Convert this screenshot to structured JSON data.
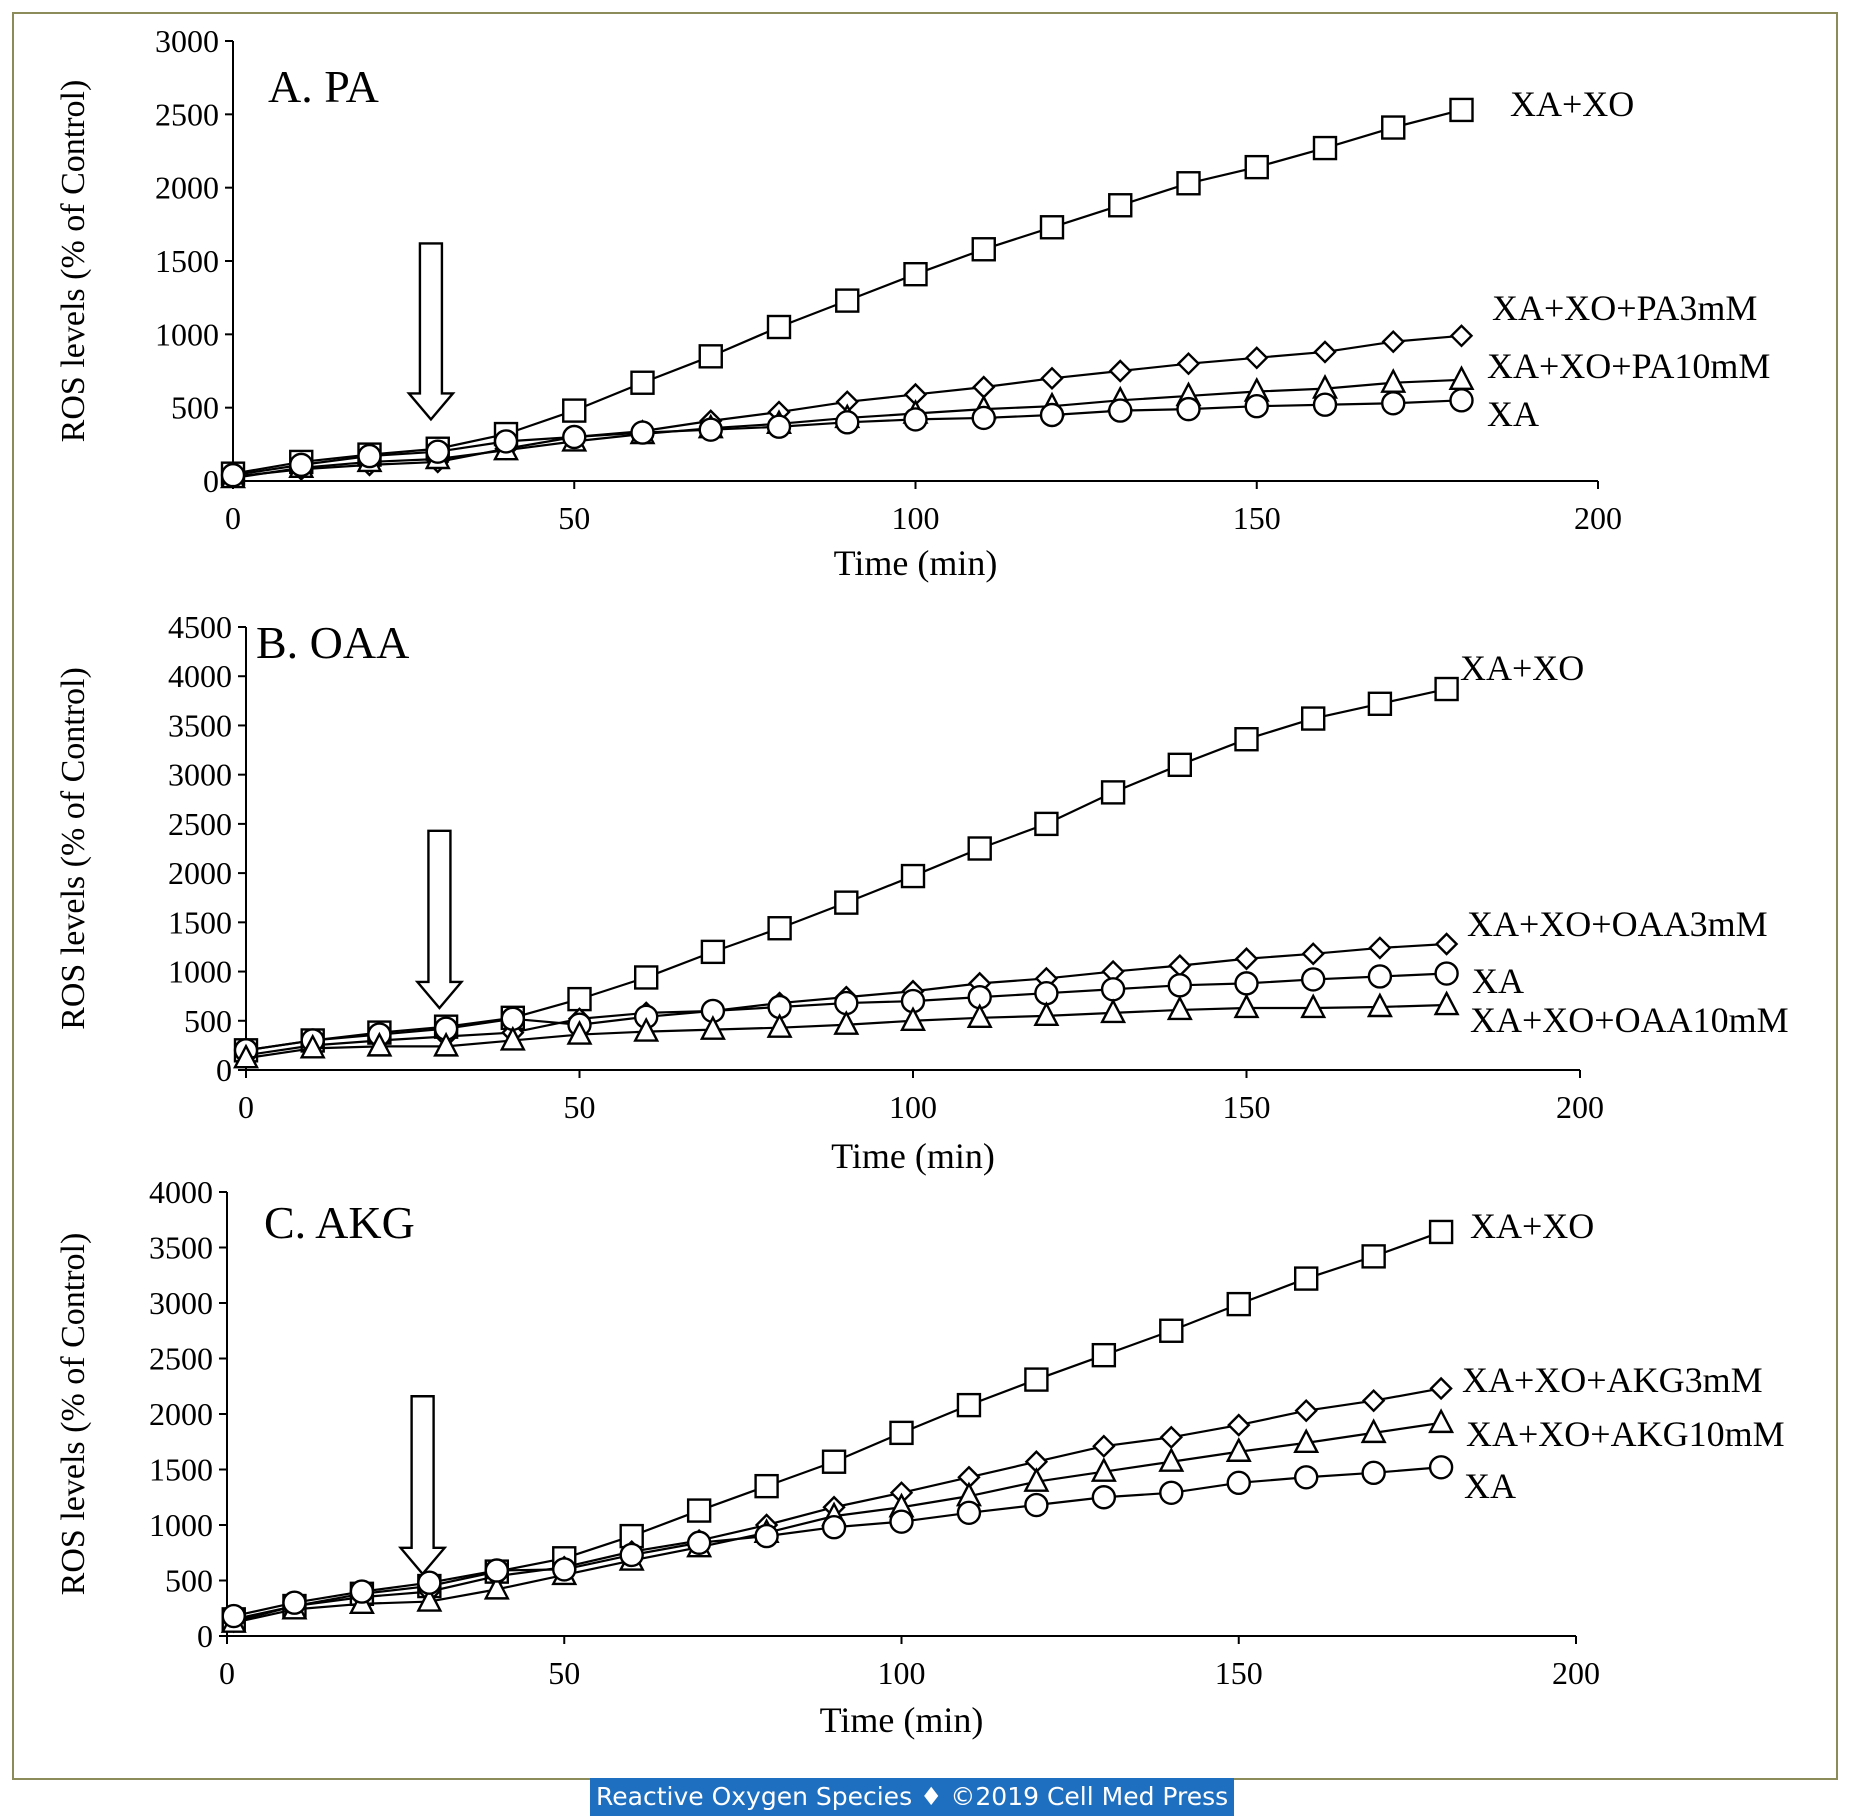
{
  "chart_data": [
    {
      "type": "line",
      "title": "A. PA",
      "xlabel": "Time (min)",
      "ylabel": "ROS levels  (% of Control)",
      "xlim": [
        0,
        200
      ],
      "ylim": [
        0,
        3000
      ],
      "x_ticks": [
        0,
        50,
        100,
        150,
        200
      ],
      "y_ticks": [
        0,
        500,
        1000,
        1500,
        2000,
        2500,
        3000
      ],
      "arrow_x": 29,
      "x": [
        0,
        10,
        20,
        30,
        40,
        50,
        60,
        70,
        80,
        90,
        100,
        110,
        120,
        130,
        140,
        150,
        160,
        170,
        180
      ],
      "series": [
        {
          "name": "XA+XO",
          "marker": "square",
          "values": [
            50,
            130,
            180,
            220,
            320,
            480,
            670,
            850,
            1050,
            1230,
            1410,
            1580,
            1730,
            1880,
            2030,
            2140,
            2270,
            2410,
            2530
          ]
        },
        {
          "name": "XA+XO+PA3mM",
          "marker": "diamond",
          "values": [
            30,
            80,
            110,
            130,
            220,
            300,
            340,
            410,
            470,
            540,
            590,
            640,
            700,
            750,
            800,
            840,
            880,
            950,
            990
          ]
        },
        {
          "name": "XA+XO+PA10mM",
          "marker": "triangle",
          "values": [
            20,
            90,
            130,
            150,
            210,
            270,
            320,
            360,
            390,
            430,
            460,
            490,
            510,
            550,
            580,
            610,
            630,
            670,
            690
          ]
        },
        {
          "name": "XA",
          "marker": "circle",
          "values": [
            40,
            110,
            170,
            200,
            270,
            300,
            330,
            350,
            370,
            400,
            420,
            430,
            450,
            480,
            490,
            510,
            520,
            530,
            550
          ]
        }
      ]
    },
    {
      "type": "line",
      "title": "B. OAA",
      "xlabel": "Time (min)",
      "ylabel": "ROS levels  (% of Control)",
      "xlim": [
        0,
        200
      ],
      "ylim": [
        0,
        4500
      ],
      "x_ticks": [
        0,
        50,
        100,
        150,
        200
      ],
      "y_ticks": [
        0,
        500,
        1000,
        1500,
        2000,
        2500,
        3000,
        3500,
        4000,
        4500
      ],
      "arrow_x": 29,
      "x": [
        0,
        10,
        20,
        30,
        40,
        50,
        60,
        70,
        80,
        90,
        100,
        110,
        120,
        130,
        140,
        150,
        160,
        170,
        180
      ],
      "series": [
        {
          "name": "XA+XO",
          "marker": "square",
          "values": [
            200,
            300,
            380,
            440,
            530,
            720,
            940,
            1200,
            1440,
            1700,
            1970,
            2250,
            2500,
            2820,
            3100,
            3360,
            3570,
            3720,
            3870
          ]
        },
        {
          "name": "XA+XO+OAA3mM",
          "marker": "diamond",
          "values": [
            150,
            250,
            300,
            340,
            380,
            520,
            580,
            600,
            680,
            740,
            800,
            880,
            930,
            1000,
            1060,
            1130,
            1180,
            1240,
            1280
          ]
        },
        {
          "name": "XA",
          "marker": "circle",
          "values": [
            200,
            300,
            360,
            420,
            520,
            460,
            540,
            600,
            640,
            680,
            700,
            740,
            780,
            820,
            860,
            880,
            920,
            950,
            980
          ]
        },
        {
          "name": "XA+XO+OAA10mM",
          "marker": "triangle",
          "values": [
            120,
            220,
            240,
            240,
            300,
            360,
            390,
            410,
            430,
            460,
            500,
            530,
            550,
            580,
            610,
            630,
            630,
            640,
            660
          ]
        }
      ]
    },
    {
      "type": "line",
      "title": "C. AKG",
      "xlabel": "Time (min)",
      "ylabel": "ROS levels  (% of Control)",
      "xlim": [
        0,
        200
      ],
      "ylim": [
        0,
        4000
      ],
      "x_ticks": [
        0,
        50,
        100,
        150,
        200
      ],
      "y_ticks": [
        0,
        500,
        1000,
        1500,
        2000,
        2500,
        3000,
        3500,
        4000
      ],
      "arrow_x": 29,
      "x": [
        1,
        10,
        20,
        30,
        40,
        50,
        60,
        70,
        80,
        90,
        100,
        110,
        120,
        130,
        140,
        150,
        160,
        170,
        180
      ],
      "series": [
        {
          "name": "XA+XO",
          "marker": "square",
          "values": [
            150,
            270,
            380,
            450,
            580,
            700,
            900,
            1130,
            1350,
            1570,
            1830,
            2080,
            2310,
            2530,
            2750,
            2990,
            3220,
            3420,
            3640
          ]
        },
        {
          "name": "XA+XO+AKG3mM",
          "marker": "diamond",
          "values": [
            130,
            270,
            350,
            400,
            540,
            620,
            760,
            860,
            1000,
            1160,
            1290,
            1430,
            1570,
            1710,
            1790,
            1900,
            2030,
            2120,
            2230
          ]
        },
        {
          "name": "XA+XO+AKG10mM",
          "marker": "triangle",
          "values": [
            120,
            240,
            290,
            310,
            420,
            550,
            680,
            800,
            930,
            1080,
            1160,
            1260,
            1390,
            1480,
            1570,
            1660,
            1740,
            1830,
            1920
          ]
        },
        {
          "name": "XA",
          "marker": "circle",
          "values": [
            180,
            300,
            400,
            480,
            590,
            600,
            730,
            840,
            900,
            980,
            1030,
            1110,
            1180,
            1250,
            1290,
            1380,
            1430,
            1470,
            1520
          ]
        }
      ]
    }
  ],
  "footer": "Reactive Oxygen Species ♦ ©2019 Cell Med Press"
}
